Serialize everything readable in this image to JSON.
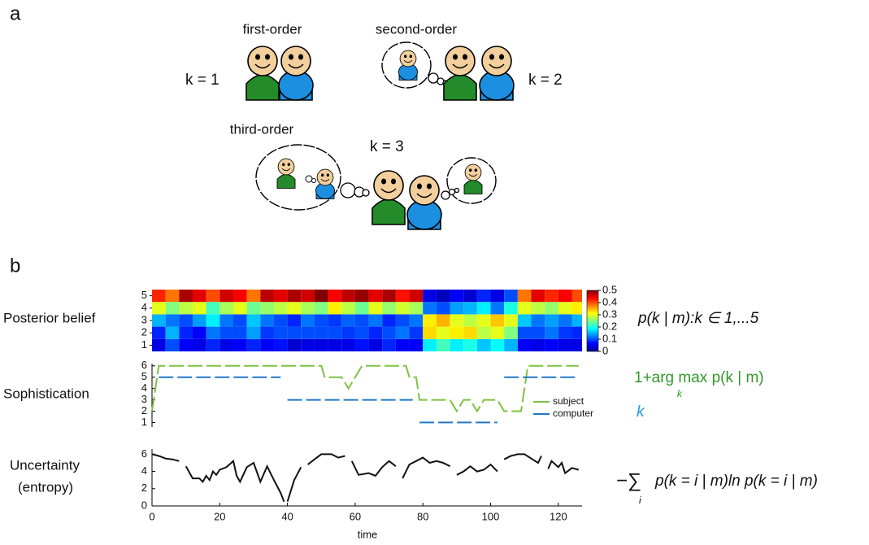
{
  "panel_a": {
    "label": "a",
    "first_order": "first-order",
    "second_order": "second-order",
    "third_order": "third-order",
    "k1": "k = 1",
    "k2": "k = 2",
    "k3": "k = 3"
  },
  "panel_b": {
    "label": "b",
    "row_labels": [
      "Posterior belief",
      "Sophistication",
      "Uncertainty",
      "(entropy)"
    ],
    "x_label": "time",
    "xlim": [
      0,
      127
    ],
    "xticks": [
      0,
      20,
      40,
      60,
      80,
      100,
      120
    ],
    "heatmap": {
      "ylim": [
        0.5,
        5.5
      ],
      "yticks": [
        1,
        2,
        3,
        4,
        5
      ],
      "x": [
        0,
        4,
        8,
        12,
        16,
        20,
        24,
        28,
        32,
        36,
        40,
        44,
        48,
        52,
        56,
        60,
        64,
        68,
        72,
        76,
        80,
        84,
        88,
        92,
        96,
        100,
        104,
        108,
        112,
        116,
        120,
        124
      ],
      "values": [
        [
          0.05,
          0.1,
          0.06,
          0.05,
          0.08,
          0.05,
          0.06,
          0.08,
          0.06,
          0.07,
          0.04,
          0.05,
          0.05,
          0.05,
          0.05,
          0.07,
          0.05,
          0.08,
          0.06,
          0.06,
          0.18,
          0.22,
          0.18,
          0.2,
          0.16,
          0.19,
          0.15,
          0.06,
          0.05,
          0.06,
          0.05,
          0.05
        ],
        [
          0.08,
          0.15,
          0.08,
          0.06,
          0.12,
          0.1,
          0.1,
          0.14,
          0.09,
          0.1,
          0.1,
          0.1,
          0.1,
          0.1,
          0.09,
          0.1,
          0.08,
          0.1,
          0.12,
          0.09,
          0.33,
          0.3,
          0.32,
          0.33,
          0.28,
          0.3,
          0.25,
          0.1,
          0.1,
          0.12,
          0.09,
          0.08
        ],
        [
          0.15,
          0.12,
          0.1,
          0.14,
          0.18,
          0.12,
          0.1,
          0.16,
          0.12,
          0.1,
          0.08,
          0.12,
          0.1,
          0.09,
          0.11,
          0.1,
          0.12,
          0.08,
          0.1,
          0.12,
          0.32,
          0.35,
          0.3,
          0.28,
          0.3,
          0.34,
          0.3,
          0.16,
          0.12,
          0.14,
          0.12,
          0.15
        ],
        [
          0.3,
          0.25,
          0.28,
          0.3,
          0.22,
          0.27,
          0.3,
          0.24,
          0.26,
          0.28,
          0.3,
          0.27,
          0.25,
          0.32,
          0.28,
          0.24,
          0.3,
          0.26,
          0.29,
          0.27,
          0.12,
          0.1,
          0.14,
          0.15,
          0.18,
          0.12,
          0.2,
          0.3,
          0.28,
          0.26,
          0.3,
          0.32
        ],
        [
          0.42,
          0.38,
          0.48,
          0.45,
          0.4,
          0.46,
          0.44,
          0.38,
          0.47,
          0.45,
          0.48,
          0.46,
          0.5,
          0.44,
          0.47,
          0.49,
          0.45,
          0.48,
          0.43,
          0.46,
          0.05,
          0.03,
          0.06,
          0.04,
          0.08,
          0.05,
          0.1,
          0.38,
          0.45,
          0.42,
          0.44,
          0.4
        ]
      ]
    },
    "colorbar": {
      "clim": [
        0,
        0.5
      ],
      "ticks": [
        0,
        0.1,
        0.2,
        0.3,
        0.4,
        0.5
      ]
    },
    "sophistication": {
      "ylim": [
        0.6,
        6.2
      ],
      "yticks": [
        1,
        2,
        3,
        4,
        5,
        6
      ],
      "series": [
        {
          "name": "subject",
          "color": "#7dc242",
          "x": [
            0,
            2,
            50,
            51,
            56,
            58,
            60,
            62,
            75,
            76,
            78,
            79,
            88,
            90,
            92,
            94,
            96,
            98,
            102,
            104,
            109,
            111,
            126
          ],
          "values": [
            2,
            6,
            6,
            5,
            5,
            4,
            5,
            6,
            6,
            5,
            5,
            3,
            3,
            2,
            3,
            3,
            2,
            3,
            3,
            2,
            2,
            6,
            6
          ]
        },
        {
          "name": "computer",
          "color": "#1f78c8",
          "x": [
            2,
            38,
            39,
            40,
            77,
            78,
            79,
            102,
            103,
            104,
            126
          ],
          "values": [
            5,
            5,
            null,
            3,
            3,
            null,
            1,
            1,
            null,
            5,
            5
          ]
        }
      ]
    },
    "uncertainty": {
      "ylim": [
        0,
        6.6
      ],
      "yticks": [
        0,
        2,
        4,
        6
      ],
      "color": "#111111",
      "x": [
        0,
        2,
        4,
        6,
        8,
        9,
        10,
        12,
        14,
        15,
        16,
        17,
        18,
        19,
        20,
        22,
        24,
        25,
        26,
        28,
        30,
        32,
        34,
        36,
        38,
        39,
        39.5,
        40,
        42,
        44,
        45,
        46,
        48,
        50,
        53,
        55,
        57,
        58,
        59,
        61,
        64,
        66,
        68,
        70,
        72,
        73,
        74,
        76,
        78,
        80,
        82,
        84,
        86,
        88,
        89,
        90,
        92,
        94,
        96,
        98,
        100,
        102,
        103,
        104,
        106,
        108,
        110,
        112,
        114,
        115,
        116,
        117,
        118,
        120,
        121,
        122,
        124,
        126
      ],
      "values": [
        6,
        5.8,
        5.5,
        5.4,
        5.2,
        null,
        4.6,
        3.2,
        3.2,
        2.8,
        3.5,
        3.0,
        4.0,
        3.6,
        4.2,
        4.5,
        5.2,
        3.5,
        2.8,
        4.5,
        5.0,
        2.8,
        4.6,
        3.0,
        1.5,
        0.5,
        null,
        0.5,
        3.0,
        4.5,
        null,
        4.8,
        5.4,
        6.0,
        6.0,
        5.6,
        5.8,
        null,
        5.2,
        3.6,
        3.8,
        3.5,
        4.5,
        5.2,
        4.6,
        null,
        3.2,
        4.8,
        5.2,
        5.6,
        5.0,
        5.2,
        5.0,
        4.6,
        null,
        3.6,
        4.0,
        4.6,
        4.0,
        4.2,
        4.8,
        4.0,
        null,
        5.4,
        5.8,
        6.0,
        6.0,
        5.5,
        5.0,
        5.8,
        null,
        4.3,
        5.2,
        4.5,
        5.0,
        3.8,
        4.4,
        4.2
      ]
    },
    "formulas": {
      "posterior": "p(k | m):k ∈ 1,...5",
      "sophistication": "1+arg max p(k | m)",
      "sophistication_sub": "k",
      "computer_k": "k",
      "entropy_sum": "−∑",
      "entropy_sub": "i",
      "entropy": "p(k = i | m)ln p(k = i | m)"
    }
  }
}
